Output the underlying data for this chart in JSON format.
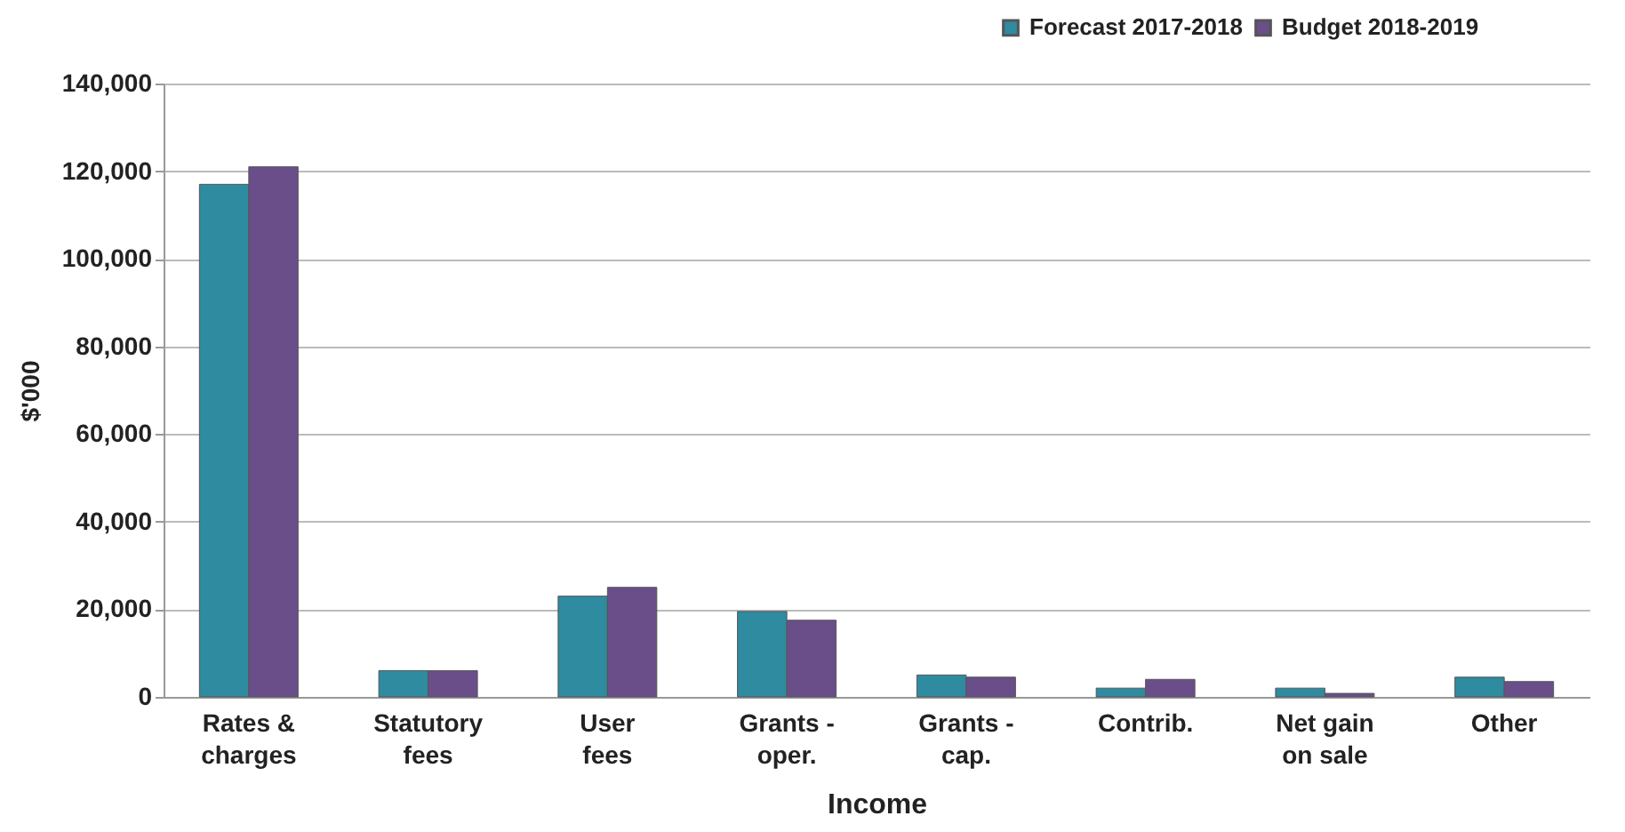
{
  "chart_data": {
    "type": "bar",
    "xlabel": "Income",
    "ylabel": "$'000",
    "categories": [
      "Rates & charges",
      "Statutory fees",
      "User fees",
      "Grants - oper.",
      "Grants - cap.",
      "Contrib.",
      "Net gain on sale",
      "Other"
    ],
    "series": [
      {
        "name": "Forecast 2017-2018",
        "color": "#2e8ba0",
        "values": [
          117000,
          6000,
          23000,
          19500,
          5000,
          2000,
          2000,
          4500
        ]
      },
      {
        "name": "Budget 2018-2019",
        "color": "#6a4e8a",
        "values": [
          121000,
          6000,
          25000,
          17500,
          4500,
          4000,
          800,
          3500
        ]
      }
    ],
    "ylim": [
      0,
      140000
    ],
    "yticks": [
      0,
      {
        "value": 20000,
        "label": "20,000"
      },
      {
        "value": 40000,
        "label": "40,000"
      },
      {
        "value": 60000,
        "label": "60,000"
      },
      {
        "value": 80000,
        "label": "80,000"
      },
      {
        "value": 100000,
        "label": "100,000"
      },
      {
        "value": 120000,
        "label": "120,000"
      },
      {
        "value": 140000,
        "label": "140,000"
      }
    ],
    "grid": "y",
    "legend": "top right"
  }
}
